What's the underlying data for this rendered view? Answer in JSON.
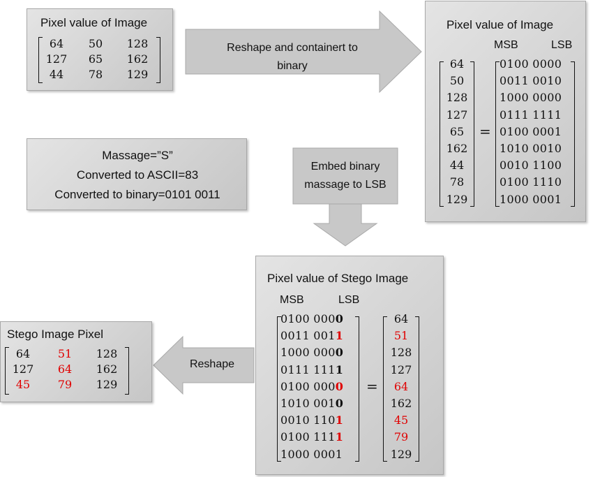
{
  "original_pixels": {
    "title": "Pixel value of Image",
    "matrix": [
      [
        "64",
        "50",
        "128"
      ],
      [
        "127",
        "65",
        "162"
      ],
      [
        "44",
        "78",
        "129"
      ]
    ]
  },
  "arrow_reshape_binary": {
    "lines": [
      "Reshape and containert to",
      "binary"
    ]
  },
  "binary_pixels": {
    "title": "Pixel value of Image",
    "msb_label": "MSB",
    "lsb_label": "LSB",
    "values": [
      "64",
      "50",
      "128",
      "127",
      "65",
      "162",
      "44",
      "78",
      "129"
    ],
    "binary": [
      "0100 0000",
      "0011 0010",
      "1000 0000",
      "0111 1111",
      "0100 0001",
      "1010 0010",
      "0010 1100",
      "0100 1110",
      "1000 0001"
    ],
    "equals": "="
  },
  "message_box": {
    "lines": [
      "Massage=”S”",
      "Converted to ASCII=83",
      "Converted to binary=0101 0011"
    ]
  },
  "arrow_embed": {
    "lines": [
      "Embed binary",
      "massage to LSB"
    ]
  },
  "stego_binary": {
    "title": "Pixel value of Stego Image",
    "msb_label": "MSB",
    "lsb_label": "LSB",
    "binary_prefix": [
      "0100 000",
      "0011 001",
      "1000 000",
      "0111 111",
      "0100 000",
      "1010 001",
      "0010 110",
      "0100 111",
      "1000 0001"
    ],
    "binary_lsb": [
      "0",
      "1",
      "0",
      "1",
      "0",
      "0",
      "1",
      "1",
      ""
    ],
    "lsb_changed": [
      false,
      true,
      false,
      false,
      true,
      false,
      true,
      true,
      false
    ],
    "values": [
      "64",
      "51",
      "128",
      "127",
      "64",
      "162",
      "45",
      "79",
      "129"
    ],
    "value_changed": [
      false,
      true,
      false,
      false,
      true,
      false,
      true,
      true,
      false
    ],
    "equals": "="
  },
  "arrow_reshape": {
    "label": "Reshape"
  },
  "stego_pixels": {
    "title": "Stego Image Pixel",
    "matrix": [
      [
        "64",
        "51",
        "128"
      ],
      [
        "127",
        "64",
        "162"
      ],
      [
        "45",
        "79",
        "129"
      ]
    ],
    "changed": [
      [
        false,
        true,
        false
      ],
      [
        false,
        true,
        false
      ],
      [
        true,
        true,
        false
      ]
    ]
  },
  "colors": {
    "box_fill": "#d4d4d4",
    "changed": "#e00000",
    "arrow_fill": "#c8c8c8"
  }
}
